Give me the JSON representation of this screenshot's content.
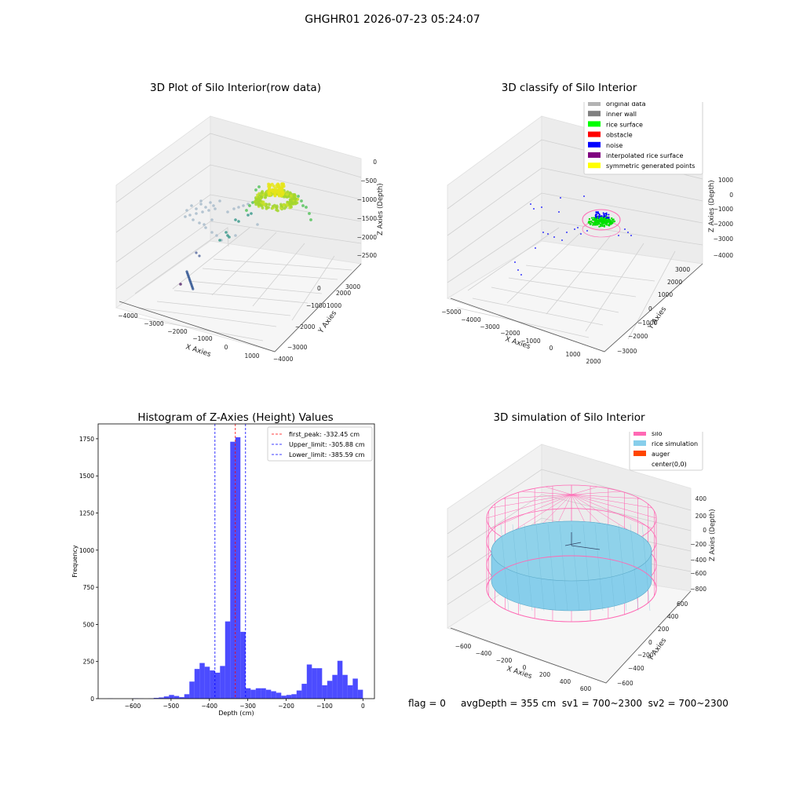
{
  "suptitle": "GHGHR01 2026-07-23 05:24:07",
  "panels": {
    "raw": {
      "title": "3D Plot of Silo Interior(row data)",
      "xlabel": "X Axies",
      "ylabel": "Y Axies",
      "zlabel": "Z Axies (Depth)",
      "xticks": [
        "−4000",
        "−3000",
        "−2000",
        "−1000",
        "0",
        "1000"
      ],
      "yticks": [
        "−4000",
        "−3000",
        "−2000",
        "−1000",
        "0",
        "1000",
        "2000",
        "3000"
      ],
      "zticks": [
        "−2500",
        "−2000",
        "−1500",
        "−1000",
        "−500",
        "0"
      ]
    },
    "classify": {
      "title": "3D classify of Silo Interior",
      "xlabel": "X Axies",
      "ylabel": "Y Axies",
      "zlabel": "Z Axies (Depth)",
      "xticks": [
        "−5000",
        "−4000",
        "−3000",
        "−2000",
        "−1000",
        "0",
        "1000",
        "2000"
      ],
      "yticks": [
        "−3000",
        "−2000",
        "−1000",
        "0",
        "1000",
        "2000",
        "3000"
      ],
      "zticks": [
        "−4000",
        "−3000",
        "−2000",
        "−1000",
        "0",
        "1000"
      ],
      "legend": [
        {
          "label": "original data",
          "color": "#b3b3b3"
        },
        {
          "label": "inner wall",
          "color": "#808080"
        },
        {
          "label": "rice surface",
          "color": "#00ff00"
        },
        {
          "label": "obstacle",
          "color": "#ff0000"
        },
        {
          "label": "noise",
          "color": "#0000ff"
        },
        {
          "label": "interpolated rice surface",
          "color": "#800080"
        },
        {
          "label": "symmetric generated points",
          "color": "#ffff00"
        }
      ]
    },
    "simulation": {
      "title": "3D simulation of Silo Interior",
      "xlabel": "X Axies",
      "ylabel": "Y Axies",
      "zlabel": "Z Axies (Depth)",
      "xticks": [
        "−600",
        "−400",
        "−200",
        "0",
        "200",
        "400",
        "600"
      ],
      "yticks": [
        "−600",
        "−400",
        "−200",
        "0",
        "200",
        "400",
        "600"
      ],
      "zticks": [
        "−800",
        "−600",
        "−400",
        "−200",
        "0",
        "200",
        "400"
      ],
      "legend": [
        {
          "label": "silo",
          "color": "#ff69b4"
        },
        {
          "label": "rice simulation",
          "color": "#87ceeb"
        },
        {
          "label": "auger",
          "color": "#ff4500"
        },
        {
          "label": "center(0,0)",
          "color": ""
        }
      ]
    }
  },
  "chart_data": {
    "type": "bar",
    "title": "Histogram of Z-Axies (Height) Values",
    "xlabel": "Depth (cm)",
    "ylabel": "Frequency",
    "xlim": [
      -690,
      30
    ],
    "ylim": [
      0,
      1850
    ],
    "xticks": [
      -600,
      -500,
      -400,
      -300,
      -200,
      -100,
      0
    ],
    "yticks": [
      0,
      250,
      500,
      750,
      1000,
      1250,
      1500,
      1750
    ],
    "bin_width": 13.3,
    "bin_starts": [
      -665,
      -651.7,
      -638.4,
      -625.1,
      -611.8,
      -598.5,
      -585.2,
      -571.9,
      -558.6,
      -545.3,
      -532,
      -518.7,
      -505.4,
      -492.1,
      -478.8,
      -465.5,
      -452.2,
      -438.9,
      -425.6,
      -412.3,
      -399,
      -385.7,
      -372.4,
      -359.1,
      -345.8,
      -332.5,
      -319.2,
      -305.9,
      -292.6,
      -279.3,
      -266,
      -252.7,
      -239.4,
      -226.1,
      -212.8,
      -199.5,
      -186.2,
      -172.9,
      -159.6,
      -146.3,
      -133,
      -119.7,
      -106.4,
      -93.1,
      -79.8,
      -66.5,
      -53.2,
      -39.9,
      -26.6,
      -13.3
    ],
    "values": [
      1,
      0,
      0,
      0,
      0,
      2,
      1,
      0,
      1,
      5,
      8,
      15,
      25,
      18,
      10,
      30,
      115,
      200,
      240,
      215,
      190,
      175,
      220,
      520,
      1730,
      1760,
      450,
      70,
      60,
      70,
      70,
      60,
      50,
      40,
      20,
      25,
      30,
      55,
      100,
      230,
      205,
      205,
      90,
      120,
      160,
      255,
      160,
      90,
      135,
      60
    ],
    "color": "#0000ff",
    "vlines": [
      {
        "label": "first_peak: -332.45 cm",
        "x": -332.45,
        "color": "#ff0000"
      },
      {
        "label": "Upper_limit: -305.88 cm",
        "x": -305.88,
        "color": "#0000ff"
      },
      {
        "label": "Lower_limit: -385.59 cm",
        "x": -385.59,
        "color": "#0000ff"
      }
    ]
  },
  "status": {
    "flag": "flag = 0",
    "info": "avgDepth = 355 cm  sv1 = 700~2300  sv2 = 700~2300"
  }
}
